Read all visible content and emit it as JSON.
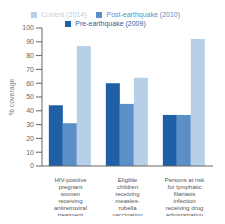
{
  "chart_data": {
    "type": "bar",
    "categories": [
      "HIV-positive\npregnant\nwomen\nreceiving\nantiretroviral\ntreatment",
      "Eligible\nchildren\nreceiving\nmeasles-\nrubella\nvaccination",
      "Persons at risk\nfor lymphatic\nfilariasis\ninfection\nreceiving drug\nadministration"
    ],
    "series": [
      {
        "name": "Pre-earthquake (2009)",
        "color": "#1f5fa6",
        "values": [
          44,
          60,
          37
        ]
      },
      {
        "name": "Post-earthquake (2010)",
        "color": "#5b8fc7",
        "values": [
          31,
          45,
          37
        ]
      },
      {
        "name": "Current (2014)",
        "color": "#b8cfe8",
        "values": [
          87,
          64,
          92
        ]
      }
    ],
    "ylabel": "% coverage",
    "ylim": [
      0,
      100
    ],
    "yticks": [
      0,
      10,
      20,
      30,
      40,
      50,
      60,
      70,
      80,
      90,
      100
    ],
    "grid": false,
    "legend": "top"
  }
}
